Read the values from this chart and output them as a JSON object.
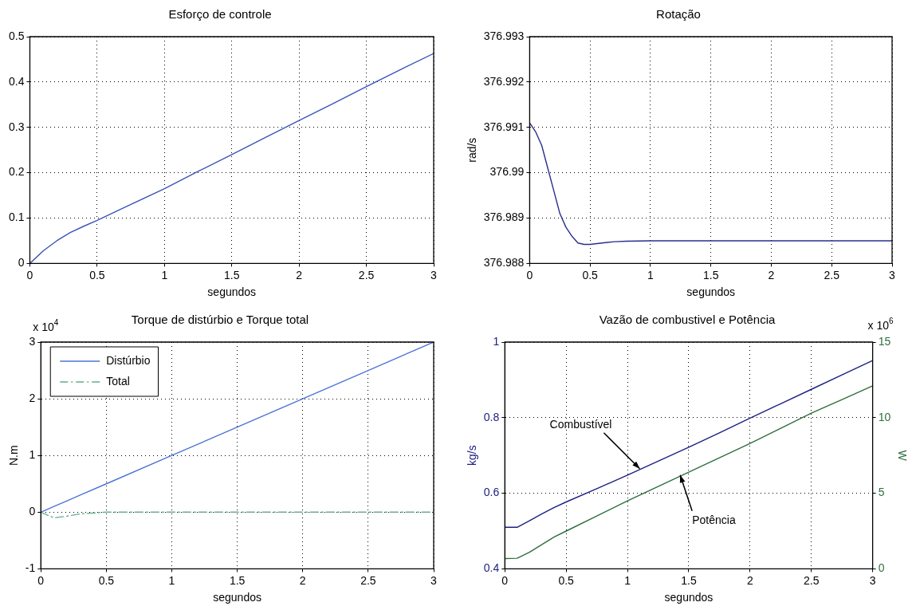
{
  "chart_data": [
    {
      "type": "line",
      "title": "Esforço de controle",
      "xlabel": "segundos",
      "xlim": [
        0,
        3
      ],
      "xticks": [
        0,
        0.5,
        1,
        1.5,
        2,
        2.5,
        3
      ],
      "ylim": [
        0,
        0.5
      ],
      "yticks": [
        0,
        0.1,
        0.2,
        0.3,
        0.4,
        0.5
      ],
      "grid": true,
      "x": [
        0,
        0.1,
        0.2,
        0.3,
        0.4,
        0.5,
        0.75,
        1,
        1.25,
        1.5,
        1.75,
        2,
        2.25,
        2.5,
        2.75,
        3
      ],
      "series": [
        {
          "color": "#3a55b8",
          "values": [
            0,
            0.028,
            0.05,
            0.068,
            0.082,
            0.095,
            0.13,
            0.165,
            0.203,
            0.24,
            0.278,
            0.315,
            0.352,
            0.39,
            0.427,
            0.463
          ]
        }
      ]
    },
    {
      "type": "line",
      "title": "Rotação",
      "xlabel": "segundos",
      "ylabel": "rad/s",
      "xlim": [
        0,
        3
      ],
      "xticks": [
        0,
        0.5,
        1,
        1.5,
        2,
        2.5,
        3
      ],
      "ylim": [
        376.988,
        376.993
      ],
      "yticks": [
        376.988,
        376.989,
        376.99,
        376.991,
        376.992,
        376.993
      ],
      "grid": true,
      "x": [
        0,
        0.05,
        0.1,
        0.15,
        0.2,
        0.25,
        0.3,
        0.35,
        0.4,
        0.45,
        0.5,
        0.6,
        0.7,
        0.8,
        1,
        1.5,
        2,
        2.5,
        3
      ],
      "series": [
        {
          "color": "#27308a",
          "values": [
            376.9911,
            376.9909,
            376.9906,
            376.9901,
            376.9896,
            376.9891,
            376.9888,
            376.9886,
            376.98845,
            376.98842,
            376.98842,
            376.98845,
            376.98848,
            376.98849,
            376.9885,
            376.9885,
            376.9885,
            376.9885,
            376.9885
          ]
        }
      ]
    },
    {
      "type": "line",
      "title": "Torque de distúrbio e Torque total",
      "xlabel": "segundos",
      "ylabel": "N.m",
      "annotations": [
        "x 10$^{4}$"
      ],
      "xlim": [
        0,
        3
      ],
      "xticks": [
        0,
        0.5,
        1,
        1.5,
        2,
        2.5,
        3
      ],
      "ylim": [
        -1,
        3
      ],
      "yticks": [
        -1,
        0,
        1,
        2,
        3
      ],
      "grid": true,
      "legend": "top left",
      "x": [
        0,
        0.1,
        0.2,
        0.3,
        0.5,
        1,
        1.5,
        2,
        2.5,
        3
      ],
      "series": [
        {
          "name": "Distúrbio",
          "color": "#4d74d6",
          "values": [
            0,
            0.1,
            0.2,
            0.3,
            0.5,
            1,
            1.5,
            2,
            2.5,
            3
          ]
        },
        {
          "name": "Total",
          "color": "#66b08a",
          "line_style": "dashed",
          "values": [
            0,
            -0.1,
            -0.07,
            -0.03,
            0,
            0,
            0,
            0,
            0,
            0
          ]
        }
      ]
    },
    {
      "type": "line",
      "title": "Vazão de combustivel e Potência",
      "xlabel": "segundos",
      "ylabel": "kg/s",
      "y2label": "W",
      "annotations": [
        "x 10$^{6}$",
        {
          "text": "Combustível",
          "x": 1.1,
          "y": 0.665
        },
        {
          "text": "Potência",
          "x": 1.43,
          "y": 0.648
        }
      ],
      "xlim": [
        0,
        3
      ],
      "xticks": [
        0,
        0.5,
        1,
        1.5,
        2,
        2.5,
        3
      ],
      "ylim": [
        0.4,
        1
      ],
      "yticks": [
        0.4,
        0.6,
        0.8,
        1
      ],
      "y2lim": [
        0,
        15
      ],
      "y2ticks": [
        0,
        5,
        10,
        15
      ],
      "grid": true,
      "x": [
        0,
        0.1,
        0.2,
        0.3,
        0.4,
        0.5,
        0.75,
        1,
        1.25,
        1.5,
        1.75,
        2,
        2.25,
        2.5,
        2.75,
        3
      ],
      "series": [
        {
          "color": "#1c2182",
          "values": [
            0.51,
            0.51,
            0.527,
            0.545,
            0.562,
            0.577,
            0.612,
            0.648,
            0.685,
            0.722,
            0.76,
            0.799,
            0.837,
            0.875,
            0.913,
            0.951
          ]
        },
        {
          "color": "#2f6e3d",
          "axis": "y2",
          "values": [
            0.68,
            0.7,
            1.1,
            1.6,
            2.1,
            2.5,
            3.5,
            4.5,
            5.45,
            6.4,
            7.35,
            8.3,
            9.3,
            10.3,
            11.2,
            12.1
          ]
        }
      ]
    }
  ]
}
